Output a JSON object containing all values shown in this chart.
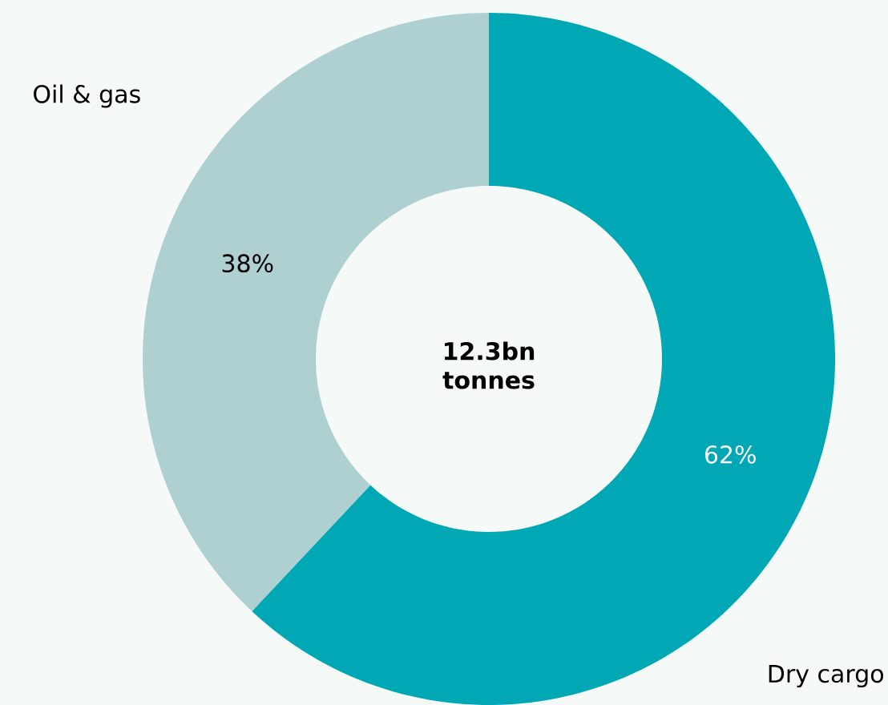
{
  "chart_data": {
    "type": "donut",
    "categories": [
      "Dry cargo",
      "Oil & gas"
    ],
    "values": [
      62,
      38
    ],
    "colors": [
      "#00a8b5",
      "#aed0d0"
    ],
    "value_labels": [
      "62%",
      "38%"
    ],
    "annotations": [
      "12.3bn tonnes"
    ]
  }
}
